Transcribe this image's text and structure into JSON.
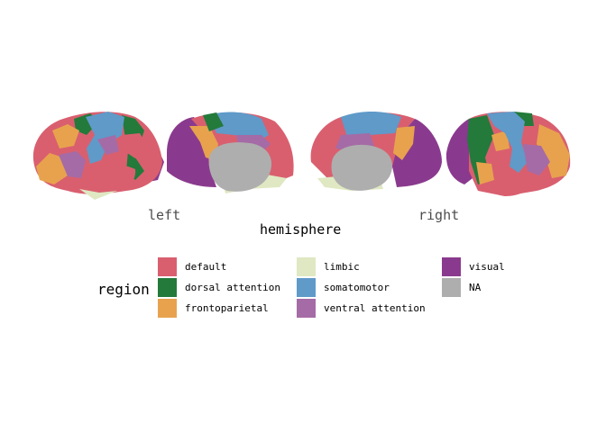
{
  "axis": {
    "x_labels": [
      "left",
      "right"
    ],
    "title": "hemisphere"
  },
  "legend": {
    "title": "region",
    "items": [
      {
        "label": "default",
        "color": "#D95F6F"
      },
      {
        "label": "dorsal attention",
        "color": "#237A3A"
      },
      {
        "label": "frontoparietal",
        "color": "#E8A24E"
      },
      {
        "label": "limbic",
        "color": "#DFE8C2"
      },
      {
        "label": "somatomotor",
        "color": "#5F9AC9"
      },
      {
        "label": "ventral attention",
        "color": "#A56BA6"
      },
      {
        "label": "visual",
        "color": "#8A3A8E"
      },
      {
        "label": "NA",
        "color": "#AEAEAE"
      }
    ]
  },
  "colors": {
    "default": "#D95F6F",
    "dorsal_attention": "#237A3A",
    "frontoparietal": "#E8A24E",
    "limbic": "#DFE8C2",
    "somatomotor": "#5F9AC9",
    "ventral_attention": "#A56BA6",
    "visual": "#8A3A8E",
    "na": "#AEAEAE"
  },
  "views": [
    "lateral",
    "medial",
    "medial",
    "lateral"
  ]
}
